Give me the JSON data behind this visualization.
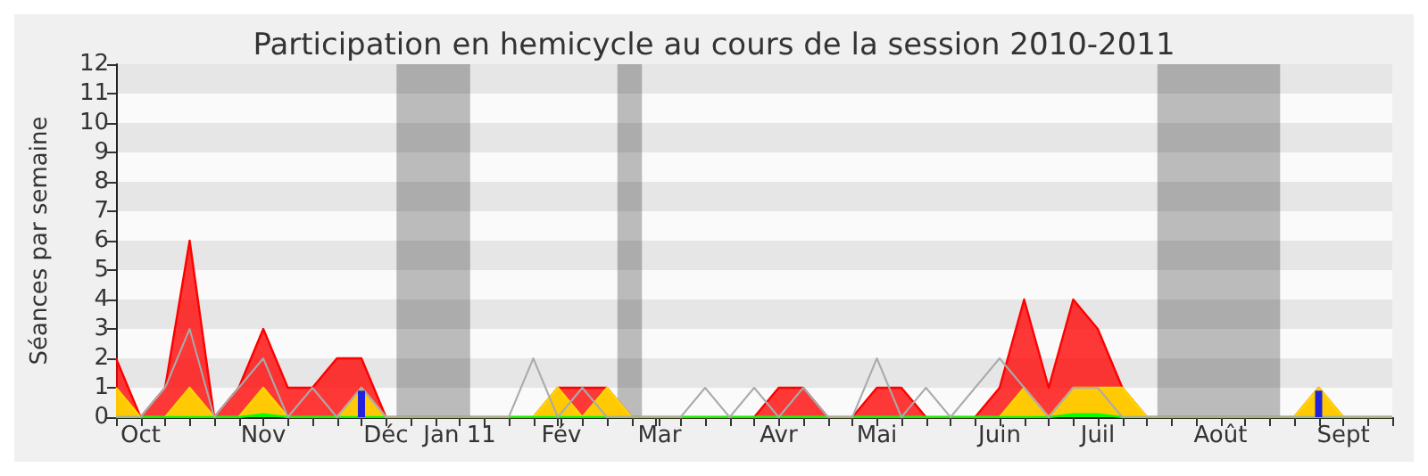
{
  "chart_data": {
    "type": "area",
    "title": "Participation en hemicycle au cours de la session 2010-2011",
    "ylabel": "Séances par semaine",
    "x": [
      "2010-09-27",
      "2010-10-04",
      "2010-10-11",
      "2010-10-18",
      "2010-10-25",
      "2010-11-01",
      "2010-11-08",
      "2010-11-15",
      "2010-11-22",
      "2010-11-29",
      "2010-12-06",
      "2010-12-13",
      "2010-12-20",
      "2010-12-27",
      "2011-01-03",
      "2011-01-10",
      "2011-01-17",
      "2011-01-24",
      "2011-01-31",
      "2011-02-07",
      "2011-02-14",
      "2011-02-21",
      "2011-02-28",
      "2011-03-07",
      "2011-03-14",
      "2011-03-21",
      "2011-03-28",
      "2011-04-04",
      "2011-04-11",
      "2011-04-18",
      "2011-04-25",
      "2011-05-02",
      "2011-05-09",
      "2011-05-16",
      "2011-05-23",
      "2011-05-30",
      "2011-06-06",
      "2011-06-13",
      "2011-06-20",
      "2011-06-27",
      "2011-07-04",
      "2011-07-11",
      "2011-07-18",
      "2011-07-25",
      "2011-08-01",
      "2011-08-08",
      "2011-08-15",
      "2011-08-22",
      "2011-08-29",
      "2011-09-05",
      "2011-09-12",
      "2011-09-19",
      "2011-09-26"
    ],
    "series": [
      {
        "color": "#ff0000",
        "values": [
          2,
          0,
          1,
          6,
          0,
          1,
          3,
          1,
          1,
          2,
          2,
          0,
          0,
          0,
          0,
          0,
          0,
          0,
          1,
          1,
          1,
          0,
          0,
          0,
          0,
          0,
          0,
          1,
          1,
          0,
          0,
          1,
          1,
          0,
          0,
          0,
          1,
          4,
          1,
          4,
          3,
          1,
          0,
          0,
          0,
          0,
          0,
          0,
          0,
          1,
          0,
          0,
          0
        ]
      },
      {
        "color": "#ffd700",
        "values": [
          1,
          0,
          0,
          1,
          0,
          0,
          1,
          0,
          0,
          0,
          1,
          0,
          0,
          0,
          0,
          0,
          0,
          0,
          1,
          0,
          1,
          0,
          0,
          0,
          0,
          0,
          0,
          0,
          0,
          0,
          0,
          0,
          0,
          0,
          0,
          0,
          0,
          1,
          0,
          1,
          1,
          1,
          0,
          0,
          0,
          0,
          0,
          0,
          0,
          1,
          0,
          0,
          0
        ]
      },
      {
        "color": "#00ff00",
        "values": [
          0,
          0,
          0,
          0,
          0,
          0,
          0.1,
          0,
          0,
          0,
          0,
          0,
          0,
          0,
          0,
          0,
          0,
          0,
          0,
          0,
          0,
          0,
          0,
          0,
          0,
          0,
          0,
          0,
          0,
          0,
          0,
          0,
          0,
          0,
          0,
          0,
          0,
          0,
          0,
          0.1,
          0.1,
          0,
          0,
          0,
          0,
          0,
          0,
          0,
          0,
          0,
          0,
          0,
          0
        ]
      },
      {
        "type": "line",
        "color": "#aaaaaa",
        "values": [
          0,
          0,
          1,
          3,
          0,
          1,
          2,
          0,
          1,
          0,
          1,
          0,
          0,
          0,
          0,
          0,
          0,
          2,
          0,
          1,
          0,
          0,
          0,
          0,
          1,
          0,
          1,
          0,
          1,
          0,
          0,
          2,
          0,
          1,
          0,
          1,
          2,
          1,
          0,
          1,
          1,
          0,
          0,
          0,
          0,
          0,
          0,
          0,
          0,
          0,
          0,
          0,
          0
        ]
      },
      {
        "type": "bar",
        "color": "#2222dd",
        "values": [
          null,
          null,
          null,
          null,
          null,
          null,
          null,
          null,
          null,
          null,
          0.9,
          null,
          null,
          null,
          null,
          null,
          null,
          null,
          null,
          null,
          null,
          null,
          null,
          null,
          null,
          null,
          null,
          null,
          null,
          null,
          null,
          null,
          null,
          null,
          null,
          null,
          null,
          null,
          null,
          null,
          null,
          null,
          null,
          null,
          null,
          null,
          null,
          null,
          null,
          0.9,
          null,
          null,
          null
        ]
      }
    ],
    "xlim": [
      "2010-09-27",
      "2011-09-26"
    ],
    "xticks": [
      {
        "value": "2010-09-27",
        "label": null
      },
      {
        "value": "2010-10-04",
        "label": "Oct"
      },
      {
        "value": "2010-10-11",
        "label": null
      },
      {
        "value": "2010-10-18",
        "label": null
      },
      {
        "value": "2010-10-25",
        "label": null
      },
      {
        "value": "2010-11-01",
        "label": null
      },
      {
        "value": "2010-11-08",
        "label": "Nov"
      },
      {
        "value": "2010-11-15",
        "label": null
      },
      {
        "value": "2010-11-22",
        "label": null
      },
      {
        "value": "2010-11-29",
        "label": null
      },
      {
        "value": "2010-12-06",
        "label": null
      },
      {
        "value": "2010-12-13",
        "label": "Déc"
      },
      {
        "value": "2010-12-20",
        "label": null
      },
      {
        "value": "2010-12-27",
        "label": null
      },
      {
        "value": "2011-01-03",
        "label": "Jan 11"
      },
      {
        "value": "2011-01-10",
        "label": null
      },
      {
        "value": "2011-01-17",
        "label": null
      },
      {
        "value": "2011-01-24",
        "label": null
      },
      {
        "value": "2011-01-31",
        "label": null
      },
      {
        "value": "2011-02-01",
        "label": "Fév"
      },
      {
        "value": "2011-02-07",
        "label": null
      },
      {
        "value": "2011-02-14",
        "label": null
      },
      {
        "value": "2011-02-21",
        "label": null
      },
      {
        "value": "2011-02-28",
        "label": null
      },
      {
        "value": "2011-03-01",
        "label": "Mar"
      },
      {
        "value": "2011-03-07",
        "label": null
      },
      {
        "value": "2011-03-14",
        "label": null
      },
      {
        "value": "2011-03-21",
        "label": null
      },
      {
        "value": "2011-03-28",
        "label": null
      },
      {
        "value": "2011-04-04",
        "label": "Avr"
      },
      {
        "value": "2011-04-11",
        "label": null
      },
      {
        "value": "2011-04-18",
        "label": null
      },
      {
        "value": "2011-04-25",
        "label": null
      },
      {
        "value": "2011-05-02",
        "label": "Mai"
      },
      {
        "value": "2011-05-09",
        "label": null
      },
      {
        "value": "2011-05-16",
        "label": null
      },
      {
        "value": "2011-05-23",
        "label": null
      },
      {
        "value": "2011-05-30",
        "label": null
      },
      {
        "value": "2011-06-06",
        "label": "Juin"
      },
      {
        "value": "2011-06-13",
        "label": null
      },
      {
        "value": "2011-06-20",
        "label": null
      },
      {
        "value": "2011-06-27",
        "label": null
      },
      {
        "value": "2011-07-04",
        "label": "Juil"
      },
      {
        "value": "2011-07-11",
        "label": null
      },
      {
        "value": "2011-07-18",
        "label": null
      },
      {
        "value": "2011-07-25",
        "label": null
      },
      {
        "value": "2011-08-01",
        "label": null
      },
      {
        "value": "2011-08-08",
        "label": "Août"
      },
      {
        "value": "2011-08-15",
        "label": null
      },
      {
        "value": "2011-08-22",
        "label": null
      },
      {
        "value": "2011-08-29",
        "label": null
      },
      {
        "value": "2011-09-05",
        "label": null
      },
      {
        "value": "2011-09-12",
        "label": "Sept"
      },
      {
        "value": "2011-09-19",
        "label": null
      },
      {
        "value": "2011-09-26",
        "label": null
      }
    ],
    "ylim": [
      0,
      12
    ],
    "yticks": [
      0,
      1,
      2,
      3,
      4,
      5,
      6,
      7,
      8,
      9,
      10,
      11,
      12
    ],
    "bands": [
      {
        "axis": "x",
        "from": "2010-12-16",
        "to": "2011-01-06",
        "color": "#000000"
      },
      {
        "axis": "x",
        "from": "2011-02-17",
        "to": "2011-02-24",
        "color": "#000000"
      },
      {
        "axis": "x",
        "from": "2011-07-21",
        "to": "2011-08-25",
        "color": "#000000"
      }
    ],
    "marker": "none"
  }
}
